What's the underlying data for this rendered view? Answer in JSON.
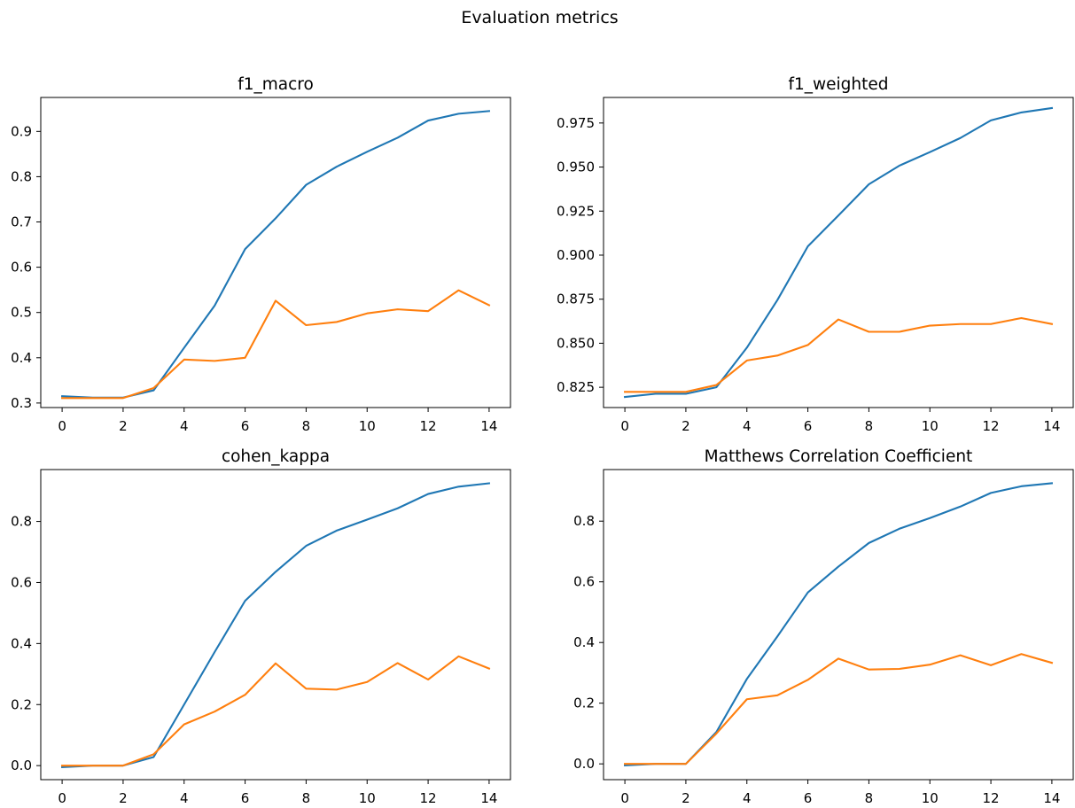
{
  "figure": {
    "title": "Evaluation metrics"
  },
  "chart_data": [
    {
      "type": "line",
      "title": "f1_macro",
      "xlabel": "",
      "ylabel": "",
      "x": [
        0,
        1,
        2,
        3,
        4,
        5,
        6,
        7,
        8,
        9,
        10,
        11,
        12,
        13,
        14
      ],
      "xlim": [
        -0.7,
        14.7
      ],
      "ylim": [
        0.29,
        0.975
      ],
      "xticks": [
        0,
        2,
        4,
        6,
        8,
        10,
        12,
        14
      ],
      "yticks": [
        0.3,
        0.4,
        0.5,
        0.6,
        0.7,
        0.8,
        0.9
      ],
      "ytick_decimals": 1,
      "grid": false,
      "series": [
        {
          "color": "#1f77b4",
          "values": [
            0.315,
            0.312,
            0.312,
            0.328,
            0.422,
            0.515,
            0.64,
            0.708,
            0.782,
            0.822,
            0.855,
            0.886,
            0.924,
            0.939,
            0.945
          ]
        },
        {
          "color": "#ff7f0e",
          "values": [
            0.311,
            0.311,
            0.311,
            0.333,
            0.396,
            0.393,
            0.4,
            0.526,
            0.472,
            0.479,
            0.498,
            0.507,
            0.503,
            0.549,
            0.516
          ]
        }
      ]
    },
    {
      "type": "line",
      "title": "f1_weighted",
      "xlabel": "",
      "ylabel": "",
      "x": [
        0,
        1,
        2,
        3,
        4,
        5,
        6,
        7,
        8,
        9,
        10,
        11,
        12,
        13,
        14
      ],
      "xlim": [
        -0.7,
        14.7
      ],
      "ylim": [
        0.8135,
        0.9895
      ],
      "xticks": [
        0,
        2,
        4,
        6,
        8,
        10,
        12,
        14
      ],
      "yticks": [
        0.825,
        0.85,
        0.875,
        0.9,
        0.925,
        0.95,
        0.975
      ],
      "ytick_decimals": 3,
      "grid": false,
      "series": [
        {
          "color": "#1f77b4",
          "values": [
            0.8195,
            0.8213,
            0.8213,
            0.825,
            0.8475,
            0.8745,
            0.905,
            0.9225,
            0.9402,
            0.9508,
            0.9585,
            0.9665,
            0.9765,
            0.981,
            0.9835
          ]
        },
        {
          "color": "#ff7f0e",
          "values": [
            0.8224,
            0.8224,
            0.8224,
            0.8263,
            0.8402,
            0.843,
            0.849,
            0.8635,
            0.8565,
            0.8565,
            0.86,
            0.8609,
            0.8609,
            0.8643,
            0.8609
          ]
        }
      ]
    },
    {
      "type": "line",
      "title": "cohen_kappa",
      "xlabel": "",
      "ylabel": "",
      "x": [
        0,
        1,
        2,
        3,
        4,
        5,
        6,
        7,
        8,
        9,
        10,
        11,
        12,
        13,
        14
      ],
      "xlim": [
        -0.7,
        14.7
      ],
      "ylim": [
        -0.046,
        0.97
      ],
      "xticks": [
        0,
        2,
        4,
        6,
        8,
        10,
        12,
        14
      ],
      "yticks": [
        0.0,
        0.2,
        0.4,
        0.6,
        0.8
      ],
      "ytick_decimals": 1,
      "grid": false,
      "series": [
        {
          "color": "#1f77b4",
          "values": [
            -0.005,
            0.0,
            0.0,
            0.028,
            0.2,
            0.372,
            0.54,
            0.635,
            0.72,
            0.77,
            0.806,
            0.843,
            0.89,
            0.914,
            0.925
          ]
        },
        {
          "color": "#ff7f0e",
          "values": [
            0.0,
            0.0,
            0.0,
            0.037,
            0.135,
            0.177,
            0.232,
            0.335,
            0.252,
            0.249,
            0.274,
            0.336,
            0.282,
            0.358,
            0.318
          ]
        }
      ]
    },
    {
      "type": "line",
      "title": "Matthews Correlation Coefficient",
      "xlabel": "",
      "ylabel": "",
      "x": [
        0,
        1,
        2,
        3,
        4,
        5,
        6,
        7,
        8,
        9,
        10,
        11,
        12,
        13,
        14
      ],
      "xlim": [
        -0.7,
        14.7
      ],
      "ylim": [
        -0.052,
        0.97
      ],
      "xticks": [
        0,
        2,
        4,
        6,
        8,
        10,
        12,
        14
      ],
      "yticks": [
        0.0,
        0.2,
        0.4,
        0.6,
        0.8
      ],
      "ytick_decimals": 1,
      "grid": false,
      "series": [
        {
          "color": "#1f77b4",
          "values": [
            -0.005,
            0.0,
            0.0,
            0.105,
            0.28,
            0.42,
            0.565,
            0.65,
            0.728,
            0.775,
            0.81,
            0.848,
            0.893,
            0.915,
            0.925
          ]
        },
        {
          "color": "#ff7f0e",
          "values": [
            0.0,
            0.0,
            0.0,
            0.1,
            0.213,
            0.226,
            0.277,
            0.347,
            0.311,
            0.313,
            0.327,
            0.358,
            0.325,
            0.362,
            0.333
          ]
        }
      ]
    }
  ]
}
